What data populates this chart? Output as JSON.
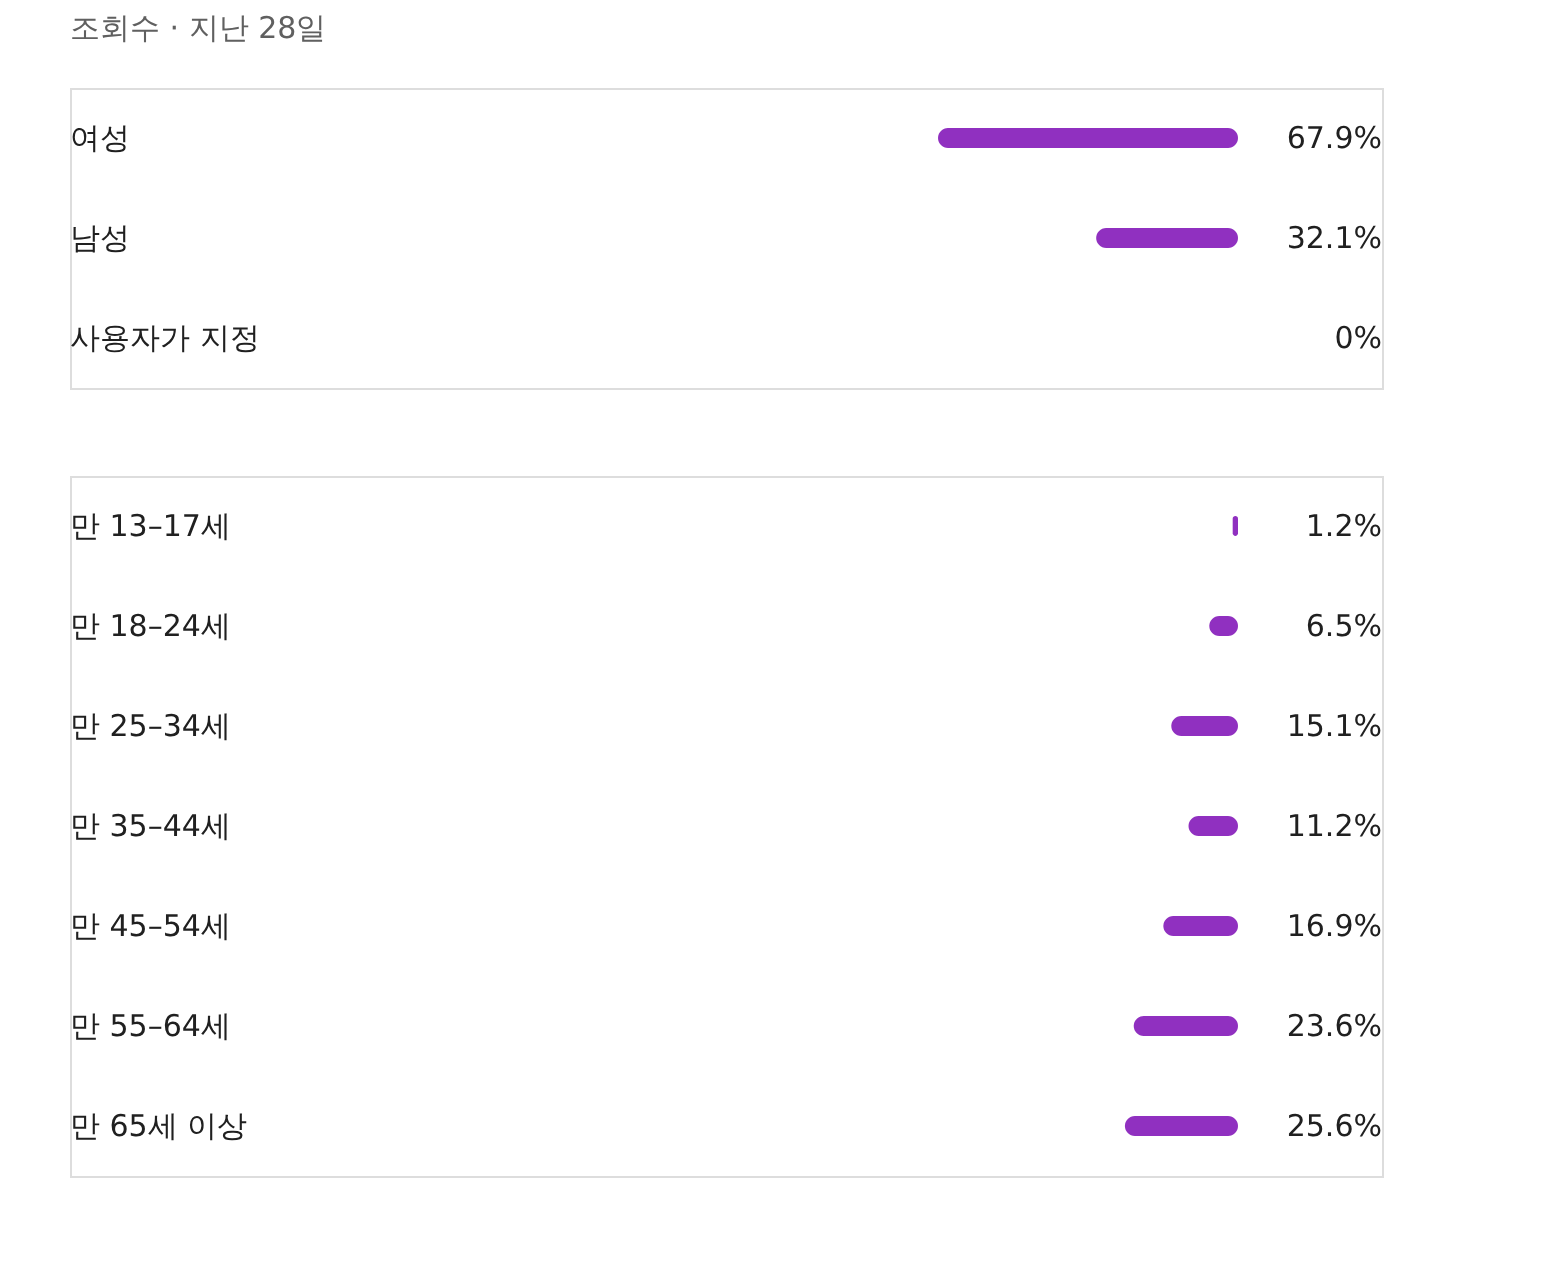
{
  "chart_data": [
    {
      "type": "bar",
      "orientation": "horizontal",
      "title": "조회수 · 지난 28일",
      "categories": [
        "여성",
        "남성",
        "사용자가 지정"
      ],
      "series": [
        {
          "color": "#9030c0",
          "values": [
            67.9,
            32.1,
            0
          ],
          "value_labels": [
            "67.9%",
            "32.1%",
            "0%"
          ]
        }
      ]
    },
    {
      "type": "bar",
      "orientation": "horizontal",
      "categories": [
        "만 13–17세",
        "만 18–24세",
        "만 25–34세",
        "만 35–44세",
        "만 45–54세",
        "만 55–64세",
        "만 65세 이상"
      ],
      "series": [
        {
          "color": "#9030c0",
          "values": [
            1.2,
            6.5,
            15.1,
            11.2,
            16.9,
            23.6,
            25.6
          ],
          "value_labels": [
            "1.2%",
            "6.5%",
            "15.1%",
            "11.2%",
            "16.9%",
            "23.6%",
            "25.6%"
          ]
        }
      ]
    }
  ]
}
